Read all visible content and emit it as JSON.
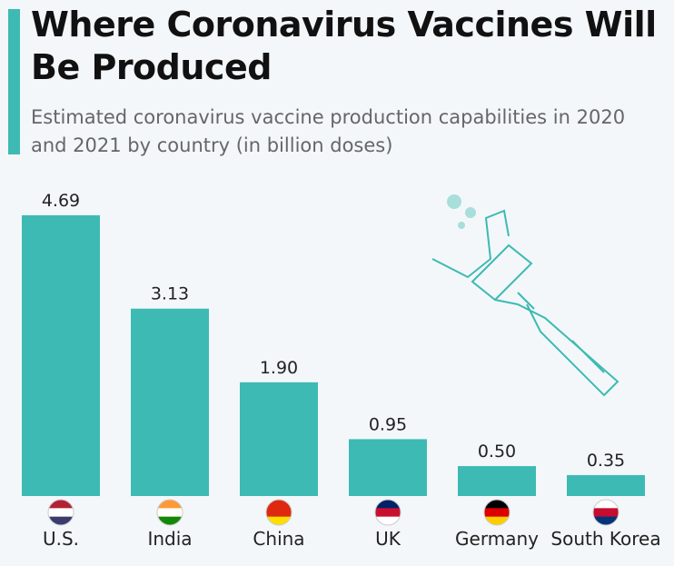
{
  "chart_data": {
    "type": "bar",
    "title": "Where Coronavirus Vaccines Will Be Produced",
    "subtitle": "Estimated coronavirus vaccine production capabilities in 2020 and 2021 by country (in billion doses)",
    "categories": [
      "U.S.",
      "India",
      "China",
      "UK",
      "Germany",
      "South Korea"
    ],
    "values": [
      4.69,
      3.13,
      1.9,
      0.95,
      0.5,
      0.35
    ],
    "value_labels": [
      "4.69",
      "3.13",
      "1.90",
      "0.95",
      "0.50",
      "0.35"
    ],
    "color": "#3dbab3"
  }
}
